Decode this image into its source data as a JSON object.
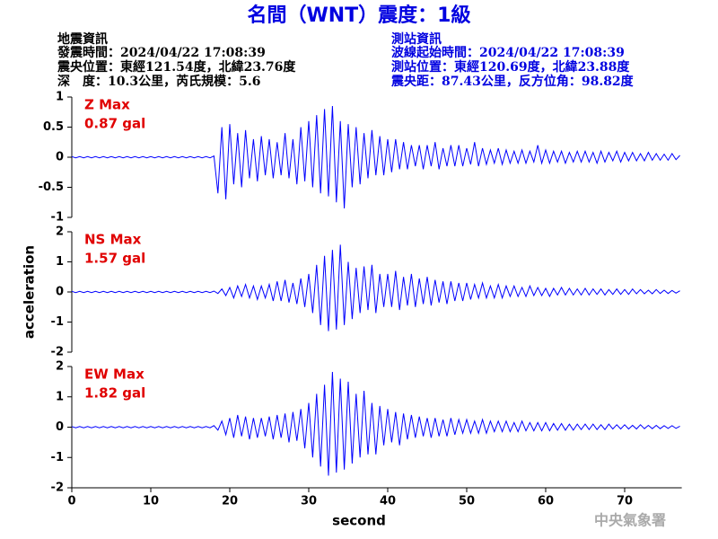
{
  "header": {
    "title": "名間（WNT）震度：1級",
    "event_info": [
      "地震資訊",
      "發震時間：2024/04/22 17:08:39",
      "震央位置：東經121.54度，北緯23.76度",
      "深　度：10.3公里，芮氏規模：5.6"
    ],
    "station_info": [
      "測站資訊",
      "波線起始時間：2024/04/22 17:08:39",
      "測站位置：東經120.69度，北緯23.88度",
      "震央距：87.43公里，反方位角：98.82度"
    ]
  },
  "footer": "中央氣象署",
  "chart_data": {
    "type": "line",
    "xlabel": "second",
    "ylabel": "acceleration",
    "xlim": [
      0,
      77
    ],
    "xticks": [
      0,
      10,
      20,
      30,
      40,
      50,
      60,
      70
    ],
    "grid": false,
    "x": [
      0,
      0.5,
      1,
      1.5,
      2,
      2.5,
      3,
      3.5,
      4,
      4.5,
      5,
      5.5,
      6,
      6.5,
      7,
      7.5,
      8,
      8.5,
      9,
      9.5,
      10,
      10.5,
      11,
      11.5,
      12,
      12.5,
      13,
      13.5,
      14,
      14.5,
      15,
      15.5,
      16,
      16.5,
      17,
      17.5,
      18,
      18.5,
      19,
      19.5,
      20,
      20.5,
      21,
      21.5,
      22,
      22.5,
      23,
      23.5,
      24,
      24.5,
      25,
      25.5,
      26,
      26.5,
      27,
      27.5,
      28,
      28.5,
      29,
      29.5,
      30,
      30.5,
      31,
      31.5,
      32,
      32.5,
      33,
      33.5,
      34,
      34.5,
      35,
      35.5,
      36,
      36.5,
      37,
      37.5,
      38,
      38.5,
      39,
      39.5,
      40,
      40.5,
      41,
      41.5,
      42,
      42.5,
      43,
      43.5,
      44,
      44.5,
      45,
      45.5,
      46,
      46.5,
      47,
      47.5,
      48,
      48.5,
      49,
      49.5,
      50,
      50.5,
      51,
      51.5,
      52,
      52.5,
      53,
      53.5,
      54,
      54.5,
      55,
      55.5,
      56,
      56.5,
      57,
      57.5,
      58,
      58.5,
      59,
      59.5,
      60,
      60.5,
      61,
      61.5,
      62,
      62.5,
      63,
      63.5,
      64,
      64.5,
      65,
      65.5,
      66,
      66.5,
      67,
      67.5,
      68,
      68.5,
      69,
      69.5,
      70,
      70.5,
      71,
      71.5,
      72,
      72.5,
      73,
      73.5,
      74,
      74.5,
      75,
      75.5,
      76,
      76.5,
      77
    ],
    "series": [
      {
        "color": "#0000ff",
        "ylim": [
          -1,
          1
        ],
        "yticks": [
          -1,
          -0.5,
          0,
          0.5,
          1
        ],
        "annotations": [
          "Z Max",
          "0.87 gal"
        ],
        "values": [
          0.01,
          -0.01,
          0.01,
          -0.01,
          0.01,
          -0.01,
          0.01,
          -0.01,
          0.01,
          -0.01,
          0.01,
          -0.01,
          0.01,
          -0.01,
          0.01,
          -0.01,
          0.01,
          -0.01,
          0.01,
          -0.01,
          0.01,
          -0.01,
          0.01,
          -0.01,
          0.01,
          -0.01,
          0.01,
          -0.01,
          0.01,
          -0.01,
          0.01,
          -0.01,
          0.01,
          -0.01,
          0.01,
          -0.01,
          0.02,
          -0.6,
          0.5,
          -0.7,
          0.55,
          -0.45,
          0.4,
          -0.5,
          0.45,
          -0.35,
          0.3,
          -0.4,
          0.35,
          -0.3,
          0.3,
          -0.35,
          0.25,
          -0.3,
          0.4,
          -0.35,
          0.3,
          -0.45,
          0.5,
          -0.4,
          0.6,
          -0.5,
          0.7,
          -0.6,
          0.8,
          -0.65,
          0.85,
          -0.75,
          0.6,
          -0.85,
          0.55,
          -0.5,
          0.5,
          -0.45,
          0.4,
          -0.35,
          0.45,
          -0.3,
          0.35,
          -0.3,
          0.3,
          -0.25,
          0.3,
          -0.2,
          0.25,
          -0.2,
          0.2,
          -0.15,
          0.2,
          -0.2,
          0.2,
          -0.15,
          0.25,
          -0.2,
          0.15,
          -0.15,
          0.2,
          -0.15,
          0.2,
          -0.15,
          0.15,
          -0.12,
          0.25,
          -0.15,
          0.15,
          -0.12,
          0.12,
          -0.1,
          0.15,
          -0.12,
          0.12,
          -0.1,
          0.1,
          -0.1,
          0.12,
          -0.1,
          0.1,
          -0.08,
          0.2,
          -0.1,
          0.12,
          -0.1,
          0.1,
          -0.08,
          0.1,
          -0.1,
          0.08,
          -0.08,
          0.1,
          -0.08,
          0.1,
          -0.08,
          0.08,
          -0.1,
          0.1,
          -0.08,
          0.08,
          -0.06,
          0.1,
          -0.08,
          0.08,
          -0.06,
          0.08,
          -0.06,
          0.06,
          -0.06,
          0.08,
          -0.05,
          0.06,
          -0.05,
          0.05,
          -0.05,
          0.06,
          -0.04,
          0.03
        ]
      },
      {
        "color": "#0000ff",
        "ylim": [
          -2,
          2
        ],
        "yticks": [
          -2,
          -1,
          0,
          1,
          2
        ],
        "annotations": [
          "NS Max",
          "1.57 gal"
        ],
        "values": [
          0.02,
          -0.02,
          0.02,
          -0.02,
          0.02,
          -0.02,
          0.02,
          -0.02,
          0.02,
          -0.02,
          0.02,
          -0.02,
          0.02,
          -0.02,
          0.02,
          -0.02,
          0.02,
          -0.02,
          0.02,
          -0.02,
          0.02,
          -0.02,
          0.02,
          -0.02,
          0.02,
          -0.02,
          0.02,
          -0.02,
          0.02,
          -0.02,
          0.02,
          -0.02,
          0.02,
          -0.02,
          0.02,
          -0.02,
          0.03,
          -0.05,
          0.1,
          -0.12,
          0.15,
          -0.2,
          0.2,
          -0.15,
          0.25,
          -0.2,
          0.2,
          -0.25,
          0.2,
          -0.2,
          0.25,
          -0.3,
          0.35,
          -0.3,
          0.4,
          -0.35,
          0.3,
          -0.4,
          0.45,
          -0.5,
          0.6,
          -0.7,
          0.9,
          -1.1,
          1.2,
          -1.3,
          1.4,
          -1.25,
          1.57,
          -1.1,
          1.0,
          -0.9,
          0.8,
          -0.7,
          0.85,
          -0.6,
          0.9,
          -0.7,
          0.6,
          -0.5,
          0.6,
          -0.5,
          0.7,
          -0.6,
          0.5,
          -0.45,
          0.6,
          -0.5,
          0.45,
          -0.4,
          0.5,
          -0.45,
          0.4,
          -0.35,
          0.35,
          -0.4,
          0.35,
          -0.3,
          0.3,
          -0.3,
          0.3,
          -0.25,
          0.25,
          -0.2,
          0.3,
          -0.2,
          0.2,
          -0.2,
          0.25,
          -0.2,
          0.2,
          -0.15,
          0.2,
          -0.15,
          0.15,
          -0.15,
          0.2,
          -0.12,
          0.15,
          -0.12,
          0.12,
          -0.15,
          0.12,
          -0.1,
          0.15,
          -0.1,
          0.12,
          -0.1,
          0.1,
          -0.1,
          0.12,
          -0.1,
          0.1,
          -0.08,
          0.1,
          -0.1,
          0.08,
          -0.08,
          0.1,
          -0.08,
          0.08,
          -0.08,
          0.1,
          -0.06,
          0.08,
          -0.06,
          0.06,
          -0.06,
          0.08,
          -0.05,
          0.06,
          -0.05,
          0.05,
          -0.04,
          0.04
        ]
      },
      {
        "color": "#0000ff",
        "ylim": [
          -2,
          2
        ],
        "yticks": [
          -2,
          -1,
          0,
          1,
          2
        ],
        "annotations": [
          "EW Max",
          "1.82 gal"
        ],
        "values": [
          0.02,
          -0.02,
          0.02,
          -0.02,
          0.02,
          -0.02,
          0.02,
          -0.02,
          0.02,
          -0.02,
          0.02,
          -0.02,
          0.02,
          -0.02,
          0.02,
          -0.02,
          0.02,
          -0.02,
          0.02,
          -0.02,
          0.02,
          -0.02,
          0.02,
          -0.02,
          0.02,
          -0.02,
          0.02,
          -0.02,
          0.02,
          -0.02,
          0.02,
          -0.02,
          0.02,
          -0.02,
          0.02,
          -0.02,
          0.05,
          -0.1,
          0.2,
          -0.25,
          0.3,
          -0.35,
          0.4,
          -0.3,
          0.35,
          -0.4,
          0.3,
          -0.35,
          0.3,
          -0.3,
          0.35,
          -0.4,
          0.4,
          -0.35,
          0.45,
          -0.5,
          0.5,
          -0.45,
          0.6,
          -0.7,
          0.8,
          -1.0,
          1.1,
          -1.3,
          1.4,
          -1.6,
          1.82,
          -1.5,
          1.6,
          -1.4,
          1.5,
          -1.2,
          1.1,
          -1.0,
          1.2,
          -0.9,
          0.8,
          -0.9,
          0.7,
          -0.6,
          0.6,
          -0.5,
          0.5,
          -0.6,
          0.45,
          -0.4,
          0.4,
          -0.35,
          0.35,
          -0.3,
          0.3,
          -0.35,
          0.3,
          -0.3,
          0.25,
          -0.3,
          0.3,
          -0.25,
          0.25,
          -0.2,
          0.25,
          -0.2,
          0.2,
          -0.2,
          0.25,
          -0.2,
          0.2,
          -0.15,
          0.2,
          -0.15,
          0.2,
          -0.15,
          0.15,
          -0.15,
          0.2,
          -0.12,
          0.15,
          -0.12,
          0.15,
          -0.12,
          0.15,
          -0.12,
          0.12,
          -0.1,
          0.12,
          -0.1,
          0.1,
          -0.1,
          0.1,
          -0.08,
          0.1,
          -0.08,
          0.1,
          -0.08,
          0.08,
          -0.08,
          0.1,
          -0.06,
          0.08,
          -0.06,
          0.08,
          -0.06,
          0.06,
          -0.06,
          0.08,
          -0.05,
          0.06,
          -0.05,
          0.06,
          -0.05,
          0.05,
          -0.04,
          0.05,
          -0.04,
          0.03
        ]
      }
    ]
  }
}
